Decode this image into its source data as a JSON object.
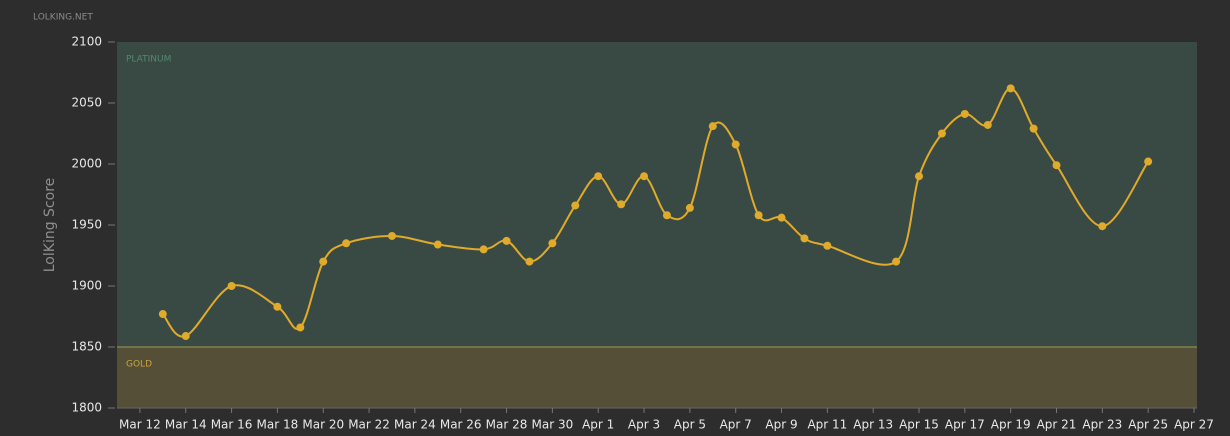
{
  "site": "LOLKING.NET",
  "chart_data": {
    "type": "line",
    "y_label": "LolKing Score",
    "bands": [
      {
        "name": "PLATINUM",
        "from": 1850,
        "to": 2100,
        "color": "#394a45",
        "label_color": "#4f8a6e"
      },
      {
        "name": "GOLD",
        "from": 1800,
        "to": 1850,
        "color": "#564f38",
        "label_color": "#c9a53a",
        "border": "#a89545"
      }
    ],
    "series": [
      {
        "name": "LolKing Score",
        "color": "#e0aa2a",
        "x": [
          "Mar 13",
          "Mar 14",
          "Mar 16",
          "Mar 18",
          "Mar 19",
          "Mar 20",
          "Mar 21",
          "Mar 23",
          "Mar 25",
          "Mar 27",
          "Mar 28",
          "Mar 29",
          "Mar 30",
          "Mar 31",
          "Apr 1",
          "Apr 2",
          "Apr 3",
          "Apr 4",
          "Apr 5",
          "Apr 6",
          "Apr 7",
          "Apr 8",
          "Apr 9",
          "Apr 10",
          "Apr 11",
          "Apr 14",
          "Apr 15",
          "Apr 16",
          "Apr 17",
          "Apr 18",
          "Apr 19",
          "Apr 20",
          "Apr 21",
          "Apr 23",
          "Apr 25"
        ],
        "values": [
          1877,
          1859,
          1900,
          1883,
          1866,
          1920,
          1935,
          1941,
          1934,
          1930,
          1937,
          1920,
          1935,
          1966,
          1990,
          1967,
          1990,
          1958,
          1964,
          2031,
          2016,
          1958,
          1956,
          1939,
          1933,
          1920,
          1990,
          2025,
          2041,
          2032,
          2062,
          2029,
          1999,
          1949,
          2002
        ]
      }
    ],
    "xlim": [
      "Mar 11",
      "Apr 27"
    ],
    "xticks": [
      "Mar 12",
      "Mar 14",
      "Mar 16",
      "Mar 18",
      "Mar 20",
      "Mar 22",
      "Mar 24",
      "Mar 26",
      "Mar 28",
      "Mar 30",
      "Apr 1",
      "Apr 3",
      "Apr 5",
      "Apr 7",
      "Apr 9",
      "Apr 11",
      "Apr 13",
      "Apr 15",
      "Apr 17",
      "Apr 19",
      "Apr 21",
      "Apr 23",
      "Apr 25",
      "Apr 27"
    ],
    "ylim": [
      1800,
      2100
    ],
    "yticks": [
      1800,
      1850,
      1900,
      1950,
      2000,
      2050,
      2100
    ]
  }
}
